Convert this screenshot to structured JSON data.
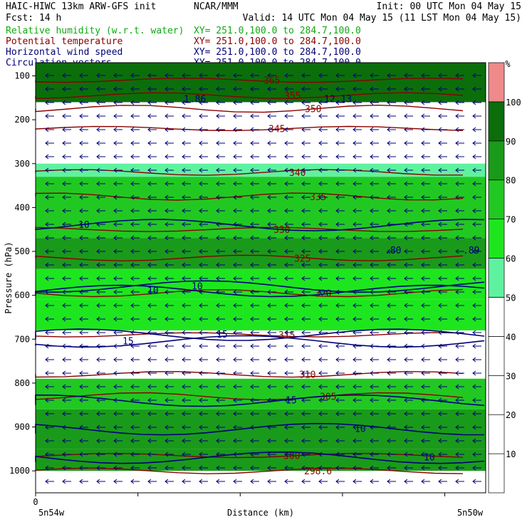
{
  "header": {
    "line1_left": "HAIC-HIWC 13km ARW-GFS init",
    "line1_mid": "NCAR/MMM",
    "line1_right": "Init: 00 UTC Mon 04 May 15",
    "line2_left": "Fcst:    14 h",
    "line2_right": "Valid: 14 UTC Mon 04 May 15 (11 LST Mon 04 May 15)",
    "fields": [
      {
        "name": "Relative humidity (w.r.t. water)",
        "xy": "XY= 251.0,100.0 to 284.7,100.0",
        "color": "#11aa11"
      },
      {
        "name": "Potential temperature",
        "xy": "XY= 251.0,100.0 to 284.7,100.0",
        "color": "#8b0000"
      },
      {
        "name": "Horizontal wind speed",
        "xy": "XY= 251.0,100.0 to 284.7,100.0",
        "color": "#00007a"
      },
      {
        "name": "Circulation vectors",
        "xy": "XY= 251.0,100.0 to 284.7,100.0",
        "color": "#00007a"
      }
    ]
  },
  "chart_data": {
    "type": "heatmap",
    "ylabel": "Pressure (hPa)",
    "xlabel": "Distance (km)",
    "x_start_label": "0",
    "x_left_label": "5n54w",
    "x_right_label": "5n50w",
    "y_ticks": [
      100,
      200,
      300,
      400,
      500,
      600,
      700,
      800,
      900,
      1000
    ],
    "ylim": [
      70,
      1050
    ],
    "colorbar": {
      "unit": "%",
      "ticks": [
        10,
        20,
        30,
        40,
        50,
        60,
        70,
        80,
        90,
        100
      ],
      "colors": [
        "#ffffff",
        "#ffffff",
        "#ffffff",
        "#ffffff",
        "#ffffff",
        "#5ef2a0",
        "#1ee61e",
        "#22c822",
        "#1a9a1a",
        "#0b6e0b",
        "#f08a8a"
      ]
    },
    "rh_layers": [
      {
        "top": 70,
        "bottom": 160,
        "rh": 95
      },
      {
        "top": 160,
        "bottom": 250,
        "rh": 25
      },
      {
        "top": 250,
        "bottom": 300,
        "rh": 40
      },
      {
        "top": 300,
        "bottom": 330,
        "rh": 55
      },
      {
        "top": 330,
        "bottom": 470,
        "rh": 78
      },
      {
        "top": 470,
        "bottom": 540,
        "rh": 83
      },
      {
        "top": 540,
        "bottom": 610,
        "rh": 68
      },
      {
        "top": 610,
        "bottom": 680,
        "rh": 62
      },
      {
        "top": 680,
        "bottom": 790,
        "rh": 30
      },
      {
        "top": 790,
        "bottom": 860,
        "rh": 75
      },
      {
        "top": 860,
        "bottom": 950,
        "rh": 82
      },
      {
        "top": 950,
        "bottom": 1000,
        "rh": 88
      }
    ],
    "theta_levels": [
      {
        "label": "365",
        "p": 110
      },
      {
        "label": "355",
        "p": 145
      },
      {
        "label": "350",
        "p": 175
      },
      {
        "label": "345",
        "p": 220
      },
      {
        "label": "340",
        "p": 320
      },
      {
        "label": "335",
        "p": 375
      },
      {
        "label": "330",
        "p": 450
      },
      {
        "label": "325",
        "p": 515
      },
      {
        "label": "320",
        "p": 595
      },
      {
        "label": "315",
        "p": 690
      },
      {
        "label": "310",
        "p": 780
      },
      {
        "label": "305",
        "p": 830
      },
      {
        "label": "300",
        "p": 965
      },
      {
        "label": "298.6",
        "p": 1000
      }
    ],
    "wind_labels": [
      {
        "label": "10",
        "p": 440
      },
      {
        "label": "10",
        "p": 590
      },
      {
        "label": "15",
        "p": 690
      },
      {
        "label": "15",
        "p": 840
      },
      {
        "label": "10",
        "p": 905
      },
      {
        "label": "10",
        "p": 970
      },
      {
        "label": "15",
        "p": 705
      },
      {
        "label": "10",
        "p": 580
      }
    ],
    "point_labels": [
      ".80",
      ".89",
      "1.86",
      "12.13"
    ]
  }
}
